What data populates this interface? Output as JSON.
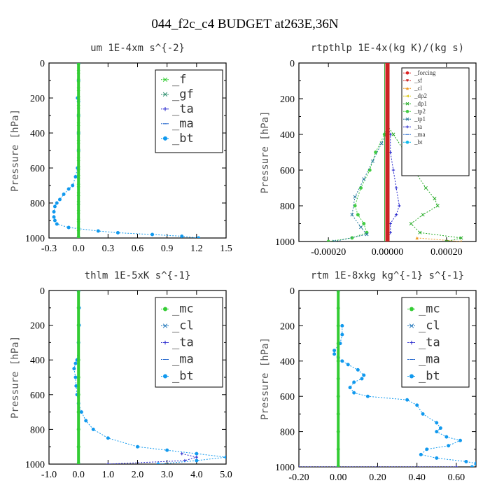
{
  "figure": {
    "title": "044_f2c_c4  BUDGET at263E,36N"
  },
  "chart_data": [
    {
      "type": "line",
      "title": "um  1E-4xm s^{-2}",
      "ylabel": "Pressure [hPa]",
      "xlim": [
        -0.3,
        1.5
      ],
      "ylim": [
        1000,
        0
      ],
      "xticks": [
        "-0.3",
        "0.0",
        "0.3",
        "0.6",
        "0.9",
        "1.2",
        "1.5"
      ],
      "yticks": [
        "0",
        "200",
        "400",
        "600",
        "800",
        "1000"
      ],
      "legend_position": "top-right",
      "series": [
        {
          "name": "_f",
          "color": "#33cc33",
          "marker": "x",
          "y": [
            0,
            50,
            100,
            150,
            200,
            250,
            300,
            350,
            400,
            450,
            500,
            550,
            600,
            650,
            700,
            750,
            800,
            850,
            900,
            950,
            1000
          ],
          "x": [
            0,
            0,
            0,
            0,
            0,
            0,
            0,
            0,
            0,
            0,
            0,
            0,
            0,
            0,
            0,
            0,
            0,
            0,
            0,
            0,
            0
          ]
        },
        {
          "name": "_gf",
          "color": "#2f8f6f",
          "marker": "x",
          "y": [
            0,
            200,
            400,
            600,
            800,
            1000
          ],
          "x": [
            0,
            0,
            0,
            0,
            0,
            0
          ]
        },
        {
          "name": "_ta",
          "color": "#2222cc",
          "marker": "+",
          "y": [
            0,
            1000
          ],
          "x": [
            0,
            0
          ]
        },
        {
          "name": "_ma",
          "color": "#2266cc",
          "marker": "-",
          "y": [
            0,
            1000
          ],
          "x": [
            0,
            0
          ]
        },
        {
          "name": "_bt",
          "color": "#1199ee",
          "marker": "o",
          "y": [
            0,
            100,
            200,
            220,
            300,
            400,
            500,
            600,
            650,
            700,
            720,
            750,
            780,
            800,
            820,
            850,
            880,
            900,
            920,
            940,
            960,
            970,
            980,
            990,
            1000
          ],
          "x": [
            0,
            0,
            -0.01,
            0,
            0,
            0,
            0,
            -0.01,
            -0.03,
            -0.06,
            -0.1,
            -0.15,
            -0.19,
            -0.22,
            -0.24,
            -0.25,
            -0.25,
            -0.24,
            -0.22,
            -0.1,
            0.2,
            0.4,
            0.75,
            1.05,
            1.22
          ]
        }
      ]
    },
    {
      "type": "line",
      "title": "rtpthlp  1E-4x(kg K)/(kg s)",
      "ylabel": "Pressure [hPa]",
      "xlim": [
        -0.0003,
        0.0003
      ],
      "ylim": [
        1000,
        0
      ],
      "xticks": [
        "-0.00020",
        "0.00000",
        "0.00020"
      ],
      "xtick_values": [
        -0.0002,
        0,
        0.0002
      ],
      "yticks": [
        "0",
        "200",
        "400",
        "600",
        "800",
        "1000"
      ],
      "legend_position": "top-right",
      "series": [
        {
          "name": "_forcing",
          "color": "#dd2222",
          "marker": "o",
          "y": [
            0,
            1000
          ],
          "x": [
            0,
            0
          ]
        },
        {
          "name": "_sf",
          "color": "#cc2222",
          "marker": "v",
          "y": [
            0,
            1000
          ],
          "x": [
            0,
            0
          ]
        },
        {
          "name": "_cl",
          "color": "#ee9922",
          "marker": "^",
          "y": [
            980,
            1000
          ],
          "x": [
            0.0001,
            0.00025
          ]
        },
        {
          "name": "_dp2",
          "color": "#ddcc22",
          "marker": "<",
          "y": [
            0,
            1000
          ],
          "x": [
            0,
            0
          ]
        },
        {
          "name": "_dp1",
          "color": "#22aa22",
          "marker": "x",
          "y": [
            350,
            400,
            500,
            600,
            700,
            760,
            800,
            850,
            900,
            950,
            980,
            1000
          ],
          "x": [
            0,
            2e-05,
            6e-05,
            9e-05,
            0.00013,
            0.00016,
            0.00017,
            0.00012,
            8e-05,
            0.00011,
            0.00025,
            0.0002
          ]
        },
        {
          "name": "_tp2",
          "color": "#44cc44",
          "marker": "o",
          "y": [
            350,
            400,
            500,
            600,
            700,
            800,
            850,
            900,
            950,
            980,
            1000
          ],
          "x": [
            0,
            -1e-05,
            -4e-05,
            -6e-05,
            -9e-05,
            -0.00011,
            -0.0001,
            -8e-05,
            -7e-05,
            -0.00012,
            -0.0002
          ]
        },
        {
          "name": "_tp1",
          "color": "#227799",
          "marker": "x",
          "y": [
            380,
            450,
            550,
            650,
            750,
            850,
            920,
            960,
            1000
          ],
          "x": [
            0,
            -2e-05,
            -5e-05,
            -8e-05,
            -0.00011,
            -0.00012,
            -9e-05,
            -7e-05,
            -0.00018
          ]
        },
        {
          "name": "_ta",
          "color": "#2222cc",
          "marker": "+",
          "y": [
            350,
            400,
            500,
            600,
            700,
            800,
            850,
            900,
            950,
            980,
            1000
          ],
          "x": [
            0,
            1e-05,
            1e-05,
            2e-05,
            3e-05,
            4e-05,
            3e-05,
            1e-05,
            1e-05,
            0,
            0
          ]
        },
        {
          "name": "_ma",
          "color": "#2266cc",
          "marker": "-",
          "y": [
            0,
            1000
          ],
          "x": [
            0,
            0
          ]
        },
        {
          "name": "_bt",
          "color": "#11bbee",
          "marker": "o",
          "y": [
            0,
            1000
          ],
          "x": [
            0,
            0
          ]
        }
      ]
    },
    {
      "type": "line",
      "title": "thlm  1E-5xK s^{-1}",
      "ylabel": "Pressure [hPa]",
      "xlim": [
        -1.0,
        5.0
      ],
      "ylim": [
        1000,
        0
      ],
      "xticks": [
        "-1.0",
        "0.0",
        "1.0",
        "2.0",
        "3.0",
        "4.0",
        "5.0"
      ],
      "yticks": [
        "0",
        "200",
        "400",
        "600",
        "800",
        "1000"
      ],
      "legend_position": "top-right",
      "series": [
        {
          "name": "_mc",
          "color": "#33cc33",
          "marker": "o",
          "y": [
            0,
            100,
            200,
            300,
            400,
            500,
            600,
            700,
            800,
            900,
            1000
          ],
          "x": [
            0,
            0,
            0,
            0,
            0,
            0,
            0,
            0,
            0,
            0,
            0
          ]
        },
        {
          "name": "_cl",
          "color": "#2277bb",
          "marker": "x",
          "y": [
            0,
            1000
          ],
          "x": [
            0,
            0
          ]
        },
        {
          "name": "_ta",
          "color": "#2222cc",
          "marker": "+",
          "y": [
            940,
            960,
            980,
            1000
          ],
          "x": [
            3.5,
            4.0,
            3.6,
            1.0
          ]
        },
        {
          "name": "_ma",
          "color": "#2266cc",
          "marker": "-",
          "y": [
            0,
            1000
          ],
          "x": [
            0,
            0
          ]
        },
        {
          "name": "_bt",
          "color": "#1199ee",
          "marker": "o",
          "y": [
            0,
            100,
            200,
            300,
            400,
            420,
            450,
            500,
            550,
            600,
            650,
            700,
            750,
            800,
            850,
            900,
            920,
            940,
            960,
            980,
            1000
          ],
          "x": [
            0,
            0.02,
            0.02,
            0,
            -0.05,
            -0.1,
            -0.15,
            -0.1,
            -0.08,
            -0.05,
            0,
            0.1,
            0.25,
            0.5,
            1.0,
            2.0,
            3.0,
            4.0,
            5.0,
            4.0,
            2.7
          ]
        }
      ]
    },
    {
      "type": "line",
      "title": "rtm  1E-8xkg kg^{-1} s^{-1}",
      "ylabel": "Pressure [hPa]",
      "xlim": [
        -0.2,
        0.7
      ],
      "ylim": [
        1000,
        0
      ],
      "xticks": [
        "-0.20",
        "0.00",
        "0.20",
        "0.40",
        "0.60"
      ],
      "xtick_values": [
        -0.2,
        0.0,
        0.2,
        0.4,
        0.6
      ],
      "yticks": [
        "0",
        "200",
        "400",
        "600",
        "800",
        "1000"
      ],
      "legend_position": "top-right",
      "series": [
        {
          "name": "_mc",
          "color": "#33cc33",
          "marker": "o",
          "y": [
            0,
            100,
            200,
            300,
            400,
            500,
            600,
            700,
            800,
            900,
            1000
          ],
          "x": [
            0,
            0,
            0,
            0,
            0,
            0,
            0,
            0,
            0,
            0,
            0
          ]
        },
        {
          "name": "_cl",
          "color": "#2277bb",
          "marker": "x",
          "y": [
            0,
            1000
          ],
          "x": [
            0,
            0
          ]
        },
        {
          "name": "_ta",
          "color": "#2222cc",
          "marker": "+",
          "y": [
            1000,
            1000
          ],
          "x": [
            -0.2,
            0.6
          ]
        },
        {
          "name": "_ma",
          "color": "#2266cc",
          "marker": "-",
          "y": [
            0,
            1000
          ],
          "x": [
            0,
            0
          ]
        },
        {
          "name": "_bt",
          "color": "#1199ee",
          "marker": "o",
          "y": [
            200,
            250,
            300,
            340,
            360,
            380,
            400,
            420,
            450,
            480,
            500,
            520,
            550,
            580,
            600,
            620,
            650,
            700,
            750,
            780,
            800,
            830,
            850,
            880,
            900,
            930,
            950,
            970,
            980,
            1000
          ],
          "x": [
            0.02,
            0.02,
            0.01,
            -0.02,
            -0.02,
            0.0,
            0.02,
            0.05,
            0.1,
            0.13,
            0.12,
            0.08,
            0.06,
            0.08,
            0.15,
            0.35,
            0.4,
            0.43,
            0.5,
            0.52,
            0.5,
            0.55,
            0.62,
            0.56,
            0.45,
            0.42,
            0.5,
            0.65,
            0.7,
            0.68
          ]
        }
      ]
    }
  ]
}
